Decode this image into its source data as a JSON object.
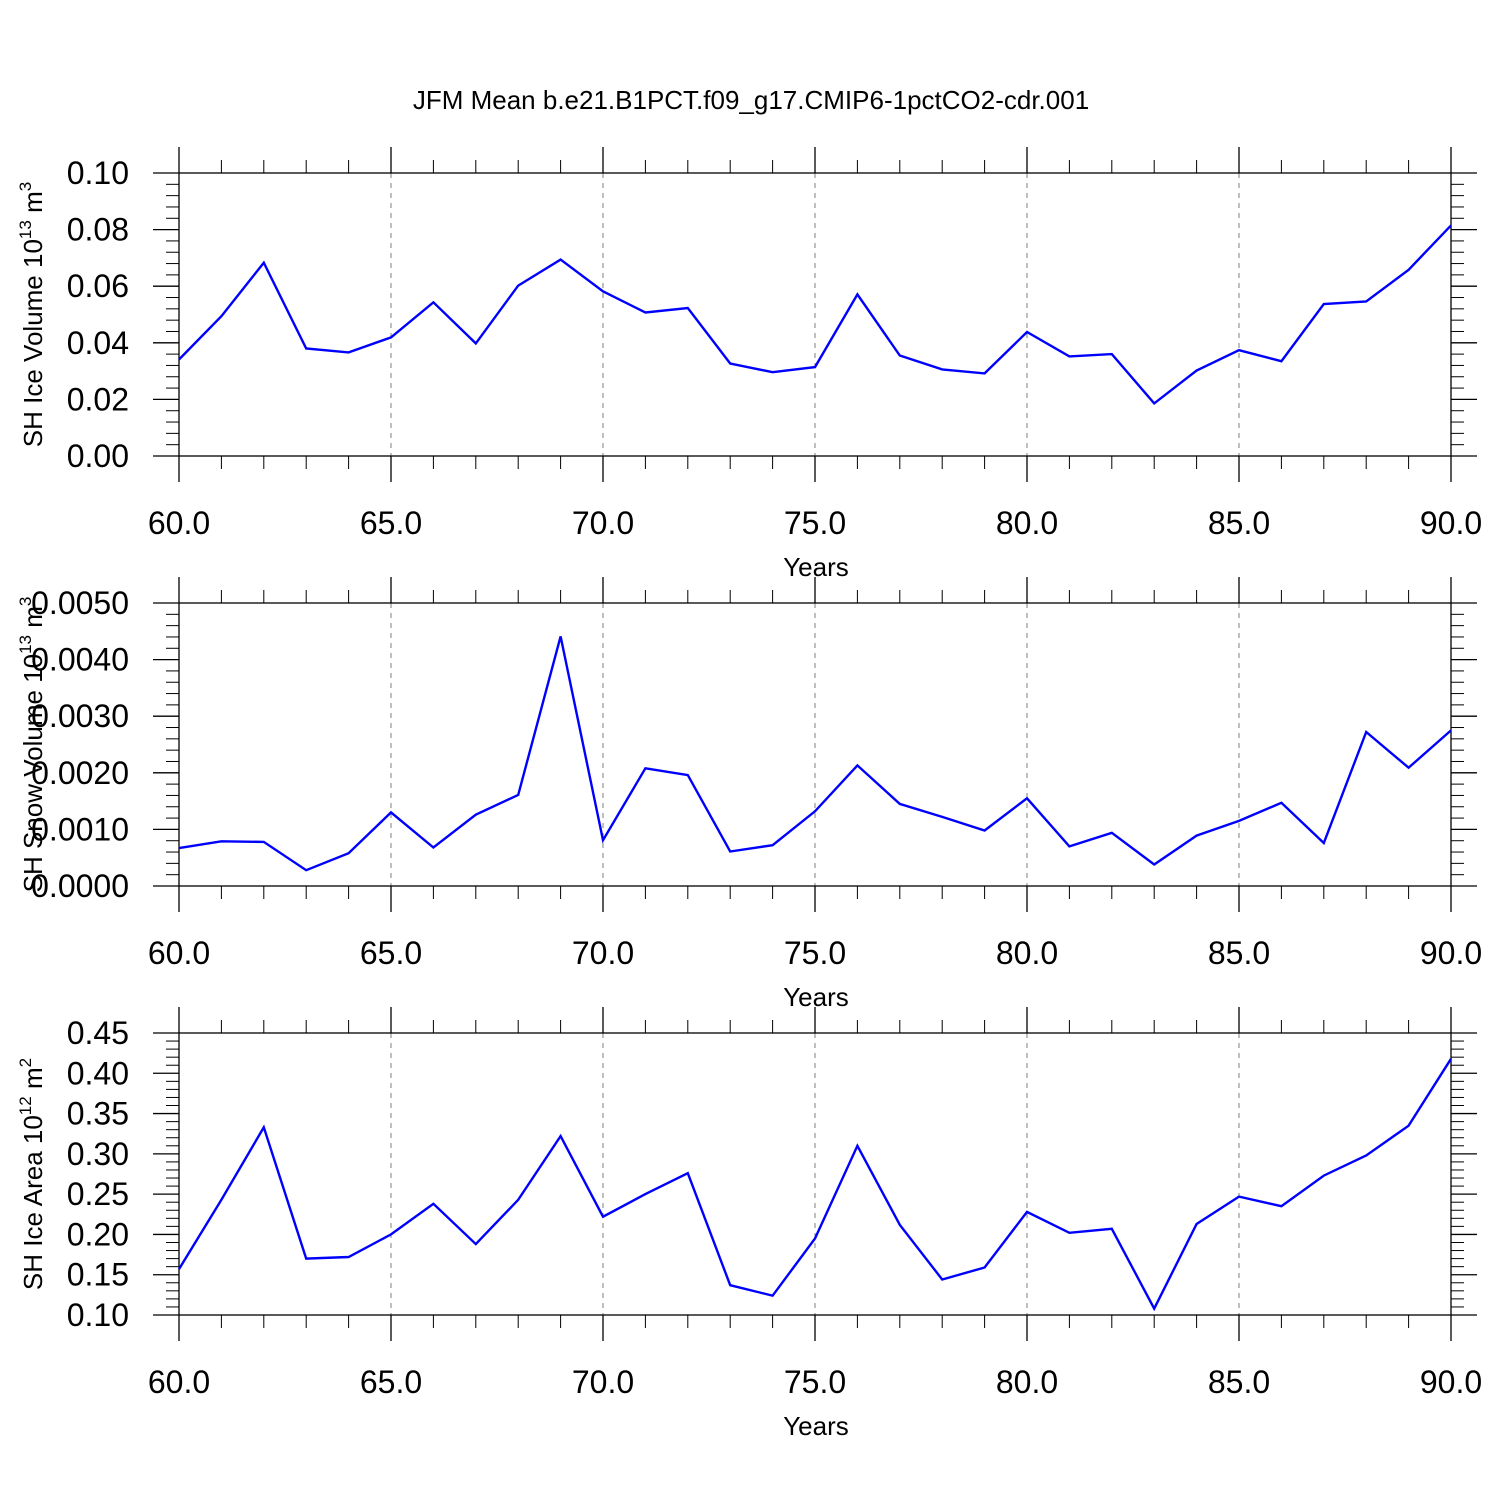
{
  "title": "JFM Mean b.e21.B1PCT.f09_g17.CMIP6-1pctCO2-cdr.001",
  "colors": {
    "line": "#0000ff",
    "axis": "#000000",
    "grid": "#7f7f7f"
  },
  "chart_data": [
    {
      "type": "line",
      "xlabel": "Years",
      "ylabel": "SH Ice Volume 10",
      "ylabel_sup": "13",
      "ylabel_unit": " m",
      "ylabel_unit_sup": "3",
      "xlim": [
        60,
        90
      ],
      "ylim": [
        0.0,
        0.1
      ],
      "xticks": [
        "60.0",
        "65.0",
        "70.0",
        "75.0",
        "80.0",
        "85.0",
        "90.0"
      ],
      "yticks": [
        "0.00",
        "0.02",
        "0.04",
        "0.06",
        "0.08",
        "0.10"
      ],
      "x": [
        60,
        61,
        62,
        63,
        64,
        65,
        66,
        67,
        68,
        69,
        70,
        71,
        72,
        73,
        74,
        75,
        76,
        77,
        78,
        79,
        80,
        81,
        82,
        83,
        84,
        85,
        86,
        87,
        88,
        89,
        90
      ],
      "values": [
        0.0341,
        0.0494,
        0.0683,
        0.038,
        0.0366,
        0.0419,
        0.0543,
        0.0398,
        0.0602,
        0.0694,
        0.0582,
        0.0507,
        0.0523,
        0.0327,
        0.0296,
        0.0314,
        0.0571,
        0.0355,
        0.0306,
        0.0292,
        0.0438,
        0.0352,
        0.036,
        0.0186,
        0.0302,
        0.0374,
        0.0335,
        0.0537,
        0.0546,
        0.0658,
        0.0815
      ],
      "grid": "dashed vertical at major x ticks"
    },
    {
      "type": "line",
      "xlabel": "Years",
      "ylabel": "SH Snow Volume 10",
      "ylabel_sup": "13",
      "ylabel_unit": " m",
      "ylabel_unit_sup": "3",
      "xlim": [
        60,
        90
      ],
      "ylim": [
        0.0,
        0.005
      ],
      "xticks": [
        "60.0",
        "65.0",
        "70.0",
        "75.0",
        "80.0",
        "85.0",
        "90.0"
      ],
      "yticks": [
        "0.0000",
        "0.0010",
        "0.0020",
        "0.0030",
        "0.0040",
        "0.0050"
      ],
      "x": [
        60,
        61,
        62,
        63,
        64,
        65,
        66,
        67,
        68,
        69,
        70,
        71,
        72,
        73,
        74,
        75,
        76,
        77,
        78,
        79,
        80,
        81,
        82,
        83,
        84,
        85,
        86,
        87,
        88,
        89,
        90
      ],
      "values": [
        0.00067,
        0.00079,
        0.00078,
        0.00028,
        0.00058,
        0.0013,
        0.00068,
        0.00126,
        0.00161,
        0.00441,
        0.00081,
        0.00208,
        0.00196,
        0.00061,
        0.00072,
        0.00132,
        0.00213,
        0.00145,
        0.00122,
        0.00098,
        0.00155,
        0.0007,
        0.00094,
        0.00038,
        0.00089,
        0.00115,
        0.00147,
        0.00076,
        0.00272,
        0.00209,
        0.00275
      ],
      "grid": "dashed vertical at major x ticks"
    },
    {
      "type": "line",
      "xlabel": "Years",
      "ylabel": "SH Ice Area 10",
      "ylabel_sup": "12",
      "ylabel_unit": " m",
      "ylabel_unit_sup": "2",
      "xlim": [
        60,
        90
      ],
      "ylim": [
        0.1,
        0.45
      ],
      "xticks": [
        "60.0",
        "65.0",
        "70.0",
        "75.0",
        "80.0",
        "85.0",
        "90.0"
      ],
      "yticks": [
        "0.10",
        "0.15",
        "0.20",
        "0.25",
        "0.30",
        "0.35",
        "0.40",
        "0.45"
      ],
      "x": [
        60,
        61,
        62,
        63,
        64,
        65,
        66,
        67,
        68,
        69,
        70,
        71,
        72,
        73,
        74,
        75,
        76,
        77,
        78,
        79,
        80,
        81,
        82,
        83,
        84,
        85,
        86,
        87,
        88,
        89,
        90
      ],
      "values": [
        0.157,
        0.243,
        0.333,
        0.17,
        0.172,
        0.2,
        0.238,
        0.188,
        0.243,
        0.322,
        0.222,
        0.25,
        0.276,
        0.137,
        0.124,
        0.195,
        0.31,
        0.212,
        0.144,
        0.159,
        0.228,
        0.202,
        0.207,
        0.108,
        0.213,
        0.247,
        0.235,
        0.273,
        0.298,
        0.335,
        0.418
      ],
      "grid": "dashed vertical at major x ticks"
    }
  ]
}
